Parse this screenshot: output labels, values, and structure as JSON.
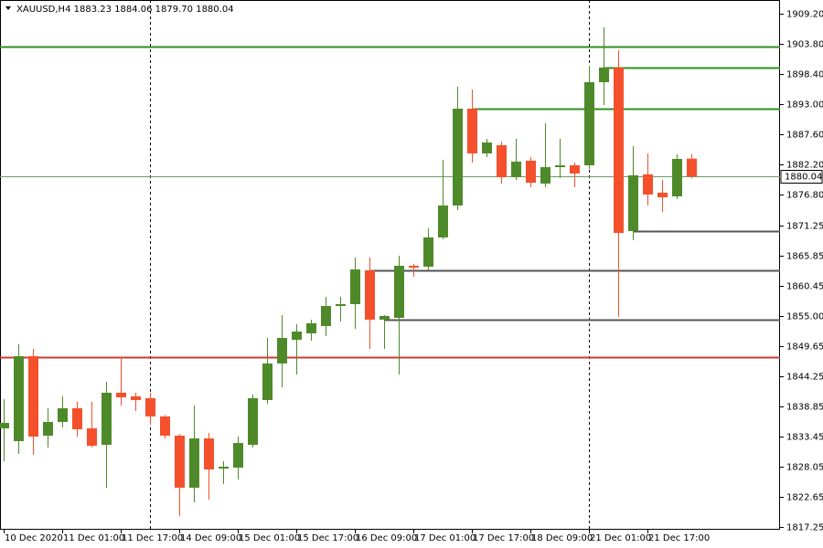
{
  "chart_data": {
    "type": "candlestick",
    "title": "XAUUSD,H4  1883.23 1884.06 1879.70 1880.04",
    "categories": [
      "10 Dec 2020",
      null,
      null,
      null,
      "11 Dec 01:00",
      null,
      null,
      null,
      "11 Dec 17:00",
      null,
      null,
      null,
      "14 Dec 09:00",
      null,
      null,
      null,
      "15 Dec 01:00",
      null,
      null,
      null,
      "15 Dec 17:00",
      null,
      null,
      null,
      "16 Dec 09:00",
      null,
      null,
      null,
      "17 Dec 01:00",
      null,
      null,
      null,
      "17 Dec 17:00",
      null,
      null,
      null,
      "18 Dec 09:00",
      null,
      null,
      null,
      "21 Dec 01:00",
      null,
      null,
      null,
      "21 Dec 17:00",
      null,
      null,
      null
    ],
    "open": [
      1834.92,
      1832.63,
      1847.85,
      1833.61,
      1836.07,
      1838.52,
      1834.92,
      1831.98,
      1841.3,
      1840.65,
      1840.32,
      1837.05,
      1833.61,
      1824.29,
      1833.12,
      1827.72,
      1827.89,
      1831.98,
      1839.99,
      1846.54,
      1850.79,
      1851.94,
      1853.25,
      1856.84,
      1857.17,
      1863.23,
      1854.39,
      1854.72,
      1864.04,
      1863.88,
      1869.12,
      1874.84,
      1892.18,
      1884.17,
      1885.64,
      1879.91,
      1882.86,
      1878.77,
      1881.71,
      1882.04,
      1882.04,
      1896.93,
      1899.55,
      1870.26,
      1880.4,
      1877.13,
      1876.48,
      1883.23
    ],
    "high": [
      1840.16,
      1849.97,
      1849.15,
      1838.52,
      1840.65,
      1839.67,
      1839.67,
      1843.26,
      1847.68,
      1841.3,
      1841.3,
      1837.3,
      1833.9,
      1839.01,
      1834.1,
      1829.03,
      1833.45,
      1840.97,
      1851.12,
      1855.21,
      1853.57,
      1854.39,
      1858.48,
      1858.48,
      1865.52,
      1865.52,
      1855.21,
      1865.84,
      1864.37,
      1870.75,
      1883.02,
      1896.11,
      1895.62,
      1886.79,
      1886.29,
      1886.79,
      1883.51,
      1889.57,
      1886.79,
      1882.53,
      1899.87,
      1906.75,
      1902.66,
      1885.48,
      1884.17,
      1879.42,
      1884.0,
      1884.06
    ],
    "low": [
      1829.03,
      1830.34,
      1830.18,
      1831.49,
      1835.08,
      1833.45,
      1831.49,
      1824.29,
      1839.01,
      1838.03,
      1835.58,
      1833.12,
      1819.21,
      1821.67,
      1822.16,
      1824.94,
      1825.76,
      1831.49,
      1839.34,
      1842.28,
      1844.57,
      1850.63,
      1851.45,
      1854.06,
      1852.75,
      1849.15,
      1849.15,
      1844.57,
      1862.08,
      1863.23,
      1868.79,
      1874.02,
      1882.53,
      1883.51,
      1878.77,
      1879.42,
      1878.11,
      1878.11,
      1879.75,
      1878.11,
      1881.39,
      1892.84,
      1854.88,
      1868.62,
      1874.84,
      1873.7,
      1875.99,
      1879.7
    ],
    "close": [
      1835.9,
      1847.85,
      1833.45,
      1836.07,
      1838.52,
      1834.76,
      1831.81,
      1841.3,
      1840.48,
      1839.99,
      1837.05,
      1833.61,
      1824.29,
      1833.12,
      1827.56,
      1828.05,
      1832.3,
      1840.32,
      1846.54,
      1851.12,
      1852.26,
      1853.74,
      1856.84,
      1857.17,
      1863.39,
      1854.39,
      1855.05,
      1864.04,
      1863.72,
      1869.12,
      1874.84,
      1892.18,
      1884.17,
      1886.13,
      1879.91,
      1882.7,
      1878.93,
      1881.71,
      1882.04,
      1880.57,
      1896.93,
      1899.55,
      1869.93,
      1880.24,
      1876.81,
      1876.31,
      1883.19,
      1880.04
    ],
    "up_color": "#4f8a2a",
    "down_color": "#f4502c",
    "ylim": [
      1816.76,
      1911.65
    ],
    "yticks": [
      {
        "value": 1909.2,
        "label": "1909.20"
      },
      {
        "value": 1903.8,
        "label": "1903.80"
      },
      {
        "value": 1898.4,
        "label": "1898.40"
      },
      {
        "value": 1893,
        "label": "1893.00"
      },
      {
        "value": 1887.6,
        "label": "1887.60"
      },
      {
        "value": 1882.2,
        "label": "1882.20"
      },
      {
        "value": 1876.8,
        "label": "1876.80"
      },
      {
        "value": 1871.25,
        "label": "1871.25"
      },
      {
        "value": 1865.85,
        "label": "1865.85"
      },
      {
        "value": 1860.45,
        "label": "1860.45"
      },
      {
        "value": 1855,
        "label": "1855.00"
      },
      {
        "value": 1849.65,
        "label": "1849.65"
      },
      {
        "value": 1844.25,
        "label": "1844.25"
      },
      {
        "value": 1838.85,
        "label": "1838.85"
      },
      {
        "value": 1833.45,
        "label": "1833.45"
      },
      {
        "value": 1828.05,
        "label": "1828.05"
      },
      {
        "value": 1822.65,
        "label": "1822.65"
      },
      {
        "value": 1817.25,
        "label": "1817.25"
      }
    ],
    "last_price": 1880.04,
    "last_price_color": "#6e9a6e",
    "levels": [
      {
        "value": 1903.31,
        "color": "#2f8f1f",
        "from": 0
      },
      {
        "value": 1899.55,
        "color": "#2f8f1f",
        "from": 41
      },
      {
        "value": 1892.18,
        "color": "#2f8f1f",
        "from": 32
      },
      {
        "value": 1870.26,
        "color": "#555555",
        "from": 43
      },
      {
        "value": 1863.23,
        "color": "#555555",
        "from": 25
      },
      {
        "value": 1854.39,
        "color": "#555555",
        "from": 26
      },
      {
        "value": 1847.68,
        "color": "#cc3b33",
        "from": 0
      }
    ],
    "separators": [
      10,
      40
    ]
  }
}
